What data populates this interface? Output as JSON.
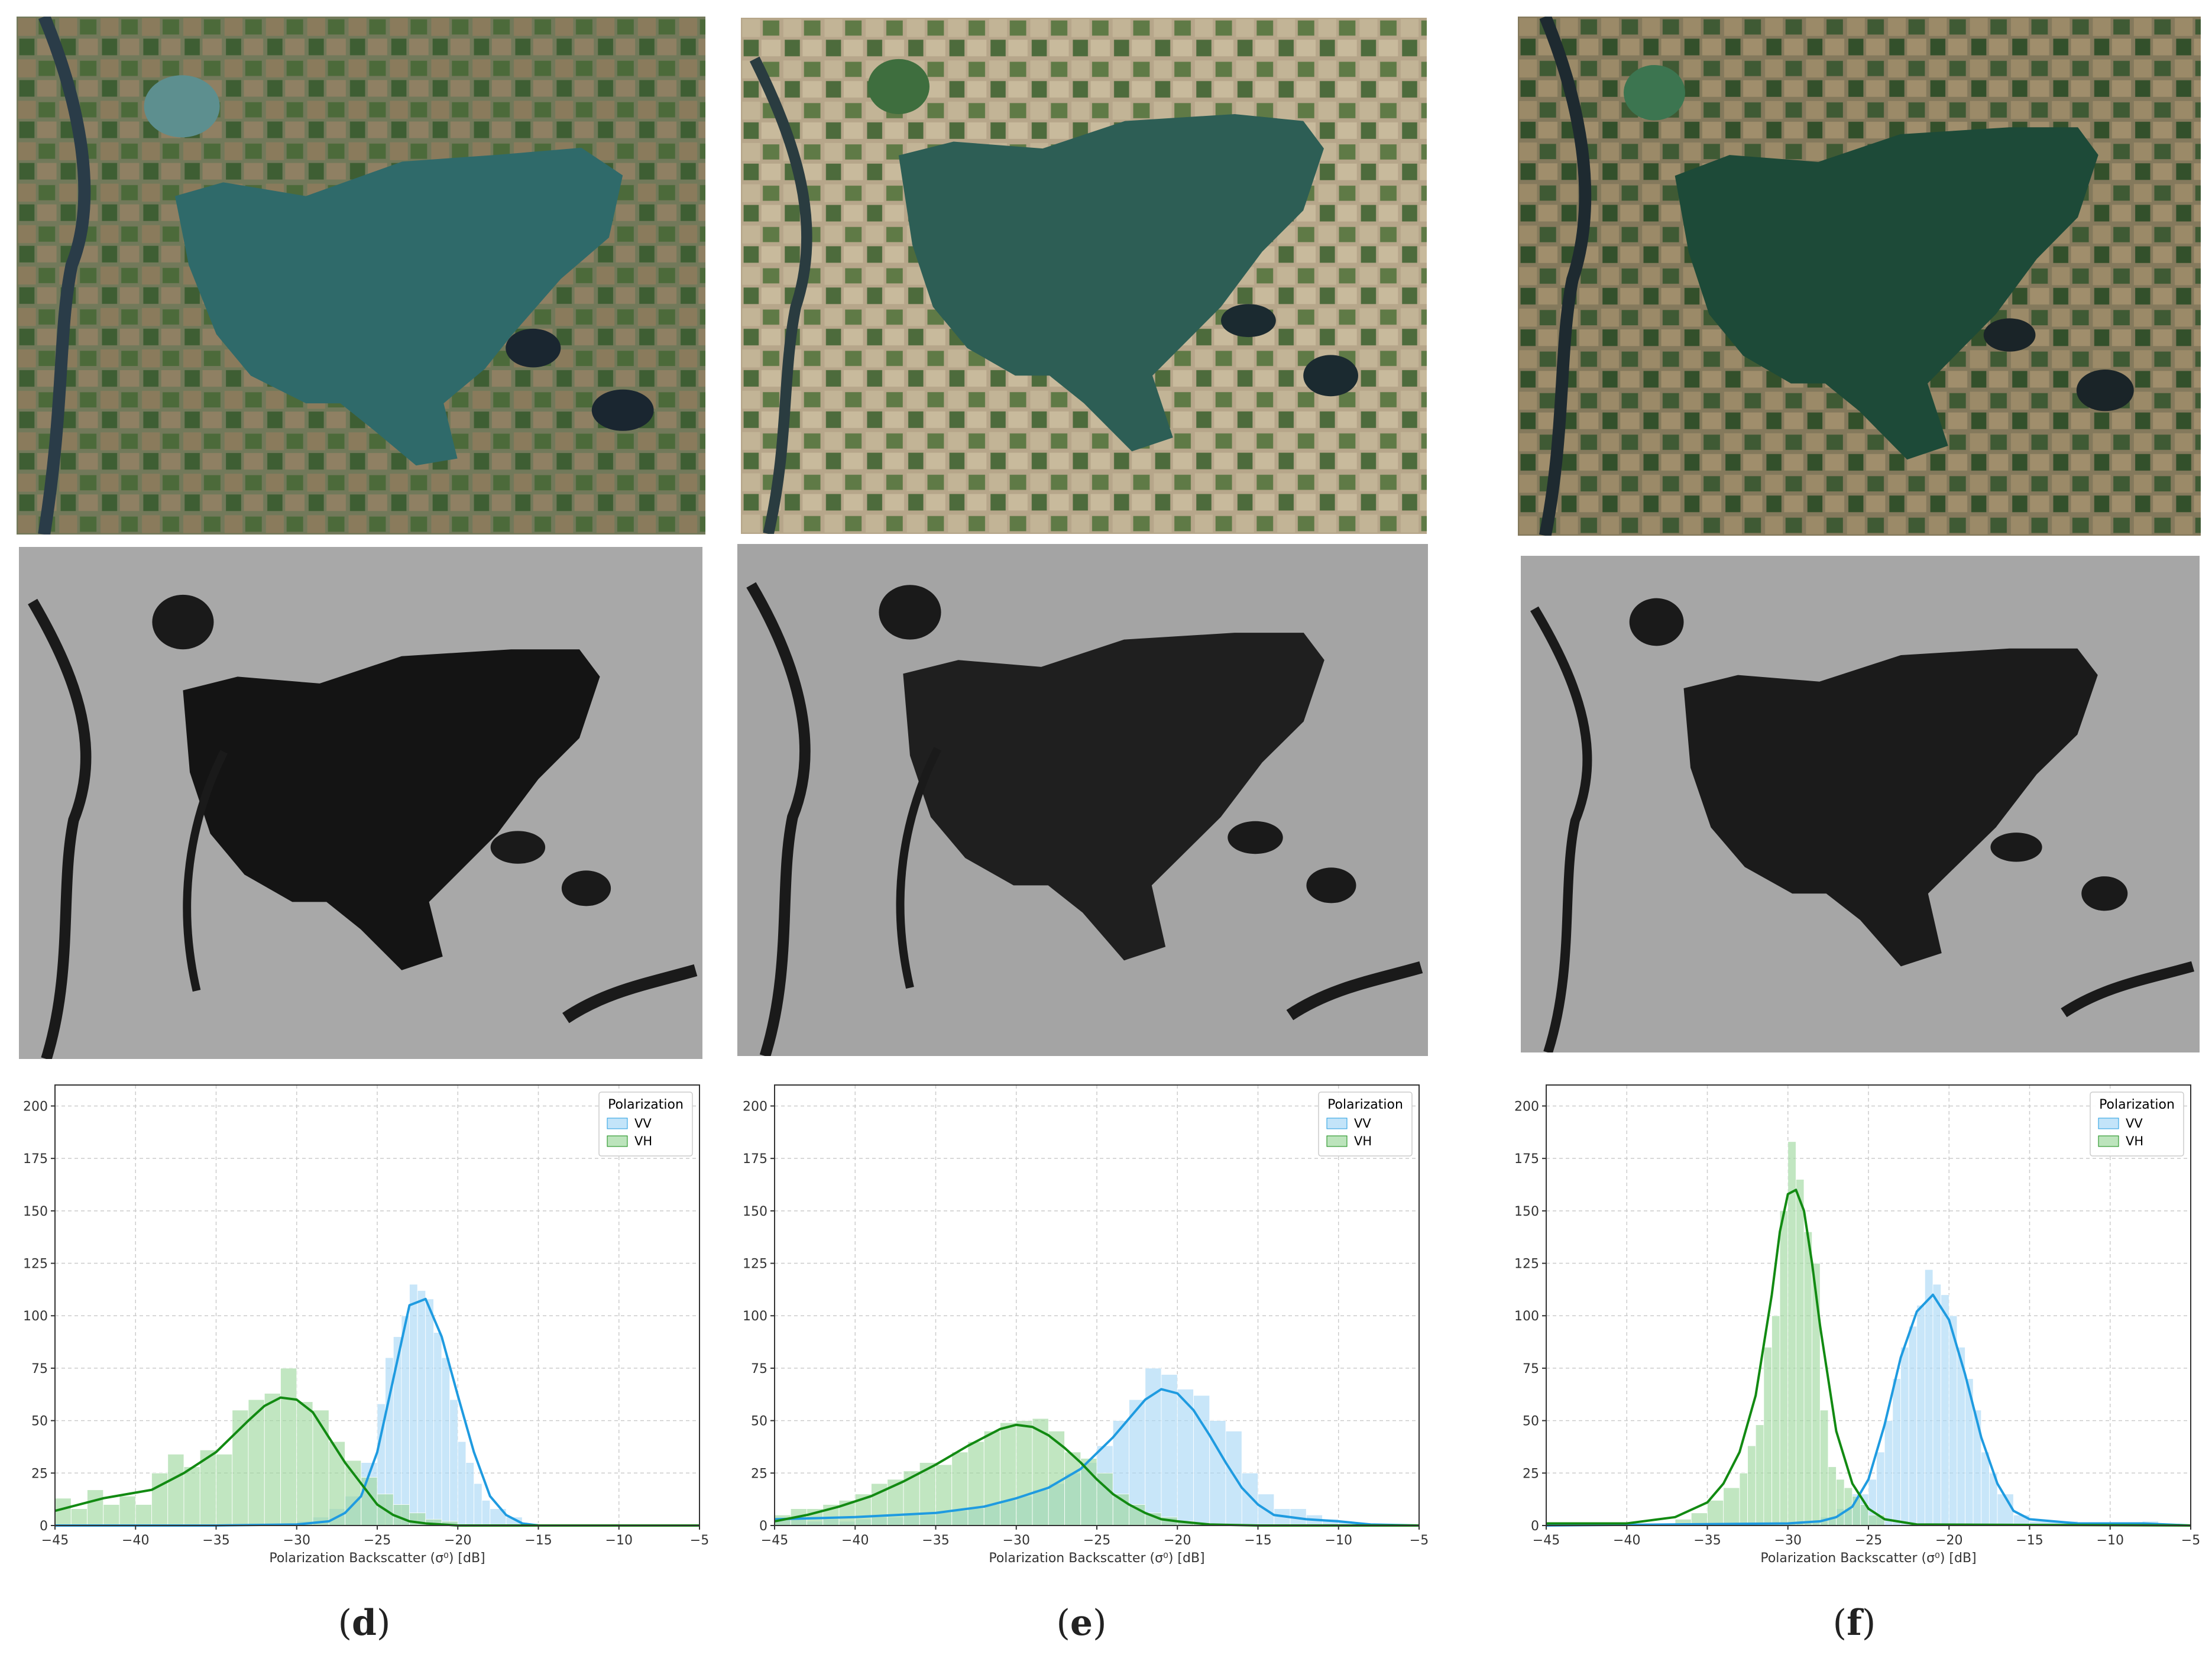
{
  "panels": [
    {
      "label": "d",
      "open": "(",
      "close": ")"
    },
    {
      "label": "e",
      "open": "(",
      "close": ")"
    },
    {
      "label": "f",
      "open": "(",
      "close": ")"
    }
  ],
  "colors": {
    "vv": "#1f9be0",
    "vv_fill": "#aad8f6",
    "vh": "#128a12",
    "vh_fill": "#9fd89f"
  },
  "chart_data": [
    {
      "type": "histogram",
      "xlabel": "Polarization Backscatter (σ⁰) [dB]",
      "xlim": [
        -45,
        -5
      ],
      "ylim": [
        0,
        210
      ],
      "xticks": [
        -45,
        -40,
        -35,
        -30,
        -25,
        -20,
        -15,
        -10,
        -5
      ],
      "yticks": [
        0,
        25,
        50,
        75,
        100,
        125,
        150,
        175,
        200
      ],
      "grid": true,
      "legend_title": "Polarization",
      "legend_position": "top-right",
      "series": [
        {
          "name": "VV",
          "bins": [
            -45,
            -44,
            -43,
            -42,
            -41,
            -40,
            -39,
            -38,
            -37,
            -36,
            -35,
            -34,
            -33,
            -32,
            -31,
            -30,
            -29,
            -28,
            -27,
            -26,
            -25,
            -24.5,
            -24,
            -23.5,
            -23,
            -22.5,
            -22,
            -21.5,
            -21,
            -20.5,
            -20,
            -19.5,
            -19,
            -18.5,
            -18,
            -17,
            -16,
            -15
          ],
          "counts": [
            0,
            0,
            0,
            0,
            0,
            0,
            0,
            0,
            0,
            0,
            0,
            0,
            1,
            1,
            1,
            2,
            4,
            8,
            14,
            30,
            58,
            80,
            90,
            100,
            115,
            112,
            108,
            92,
            80,
            60,
            40,
            30,
            20,
            12,
            8,
            4,
            1,
            0
          ],
          "kde_x": [
            -45,
            -35,
            -30,
            -28,
            -27,
            -26,
            -25,
            -24,
            -23,
            -22,
            -21,
            -20,
            -19,
            -18,
            -17,
            -16,
            -15,
            -10,
            -5
          ],
          "kde_y": [
            0,
            0,
            0.5,
            2,
            6,
            14,
            35,
            70,
            105,
            108,
            90,
            62,
            35,
            14,
            5,
            1,
            0,
            0,
            0
          ]
        },
        {
          "name": "VH",
          "bins": [
            -45,
            -44,
            -43,
            -42,
            -41,
            -40,
            -39,
            -38,
            -37,
            -36,
            -35,
            -34,
            -33,
            -32,
            -31,
            -30,
            -29,
            -28,
            -27,
            -26,
            -25,
            -24,
            -23,
            -22,
            -21,
            -20
          ],
          "counts": [
            13,
            8,
            17,
            10,
            14,
            10,
            25,
            34,
            28,
            36,
            34,
            55,
            60,
            63,
            75,
            59,
            55,
            40,
            31,
            23,
            15,
            10,
            6,
            3,
            2,
            0
          ],
          "kde_x": [
            -45,
            -42,
            -39,
            -37,
            -35,
            -33,
            -32,
            -31,
            -30,
            -29,
            -28,
            -27,
            -26,
            -25,
            -24,
            -23,
            -22,
            -20,
            -18,
            -5
          ],
          "kde_y": [
            7,
            13,
            17,
            25,
            35,
            50,
            57,
            61,
            60,
            54,
            42,
            30,
            20,
            10,
            5,
            2,
            1,
            0,
            0,
            0
          ]
        }
      ]
    },
    {
      "type": "histogram",
      "xlabel": "Polarization Backscatter (σ⁰) [dB]",
      "xlim": [
        -45,
        -5
      ],
      "ylim": [
        0,
        210
      ],
      "xticks": [
        -45,
        -40,
        -35,
        -30,
        -25,
        -20,
        -15,
        -10,
        -5
      ],
      "yticks": [
        0,
        25,
        50,
        75,
        100,
        125,
        150,
        175,
        200
      ],
      "grid": true,
      "legend_title": "Polarization",
      "legend_position": "top-right",
      "series": [
        {
          "name": "VV",
          "bins": [
            -45,
            -44,
            -43,
            -42,
            -41,
            -40,
            -39,
            -38,
            -37,
            -36,
            -35,
            -34,
            -33,
            -32,
            -31,
            -30,
            -29,
            -28,
            -27,
            -26,
            -25,
            -24,
            -23,
            -22,
            -21,
            -20,
            -19,
            -18,
            -17,
            -16,
            -15,
            -14,
            -13,
            -12,
            -11,
            -10,
            -9,
            -8
          ],
          "counts": [
            3,
            3,
            2,
            3,
            2,
            3,
            4,
            4,
            5,
            5,
            6,
            7,
            8,
            10,
            12,
            14,
            17,
            20,
            25,
            30,
            38,
            50,
            60,
            75,
            72,
            65,
            62,
            50,
            45,
            25,
            15,
            8,
            8,
            5,
            3,
            2,
            1,
            0
          ],
          "kde_x": [
            -45,
            -40,
            -35,
            -32,
            -30,
            -28,
            -26,
            -24,
            -22,
            -21,
            -20,
            -19,
            -18,
            -17,
            -16,
            -15,
            -14,
            -12,
            -10,
            -8,
            -5
          ],
          "kde_y": [
            3,
            4,
            6,
            9,
            13,
            18,
            27,
            42,
            60,
            65,
            63,
            55,
            43,
            30,
            18,
            10,
            5,
            3,
            2,
            0.5,
            0
          ],
          "kde_note": ""
        },
        {
          "name": "VH",
          "bins": [
            -45,
            -44,
            -43,
            -42,
            -41,
            -40,
            -39,
            -38,
            -37,
            -36,
            -35,
            -34,
            -33,
            -32,
            -31,
            -30,
            -29,
            -28,
            -27,
            -26,
            -25,
            -24,
            -23,
            -22,
            -21,
            -20,
            -19,
            -18
          ],
          "counts": [
            5,
            8,
            8,
            10,
            12,
            15,
            20,
            22,
            26,
            30,
            29,
            35,
            40,
            45,
            49,
            50,
            51,
            45,
            35,
            32,
            25,
            15,
            10,
            6,
            4,
            2,
            1,
            0
          ],
          "kde_x": [
            -45,
            -43,
            -41,
            -39,
            -37,
            -35,
            -33,
            -31,
            -30,
            -29,
            -28,
            -27,
            -26,
            -25,
            -24,
            -23,
            -22,
            -21,
            -20,
            -18,
            -15,
            -5
          ],
          "kde_y": [
            2,
            5,
            9,
            14,
            21,
            29,
            38,
            46,
            48,
            47,
            43,
            37,
            30,
            22,
            15,
            10,
            6,
            3,
            2,
            0.5,
            0,
            0
          ]
        }
      ]
    },
    {
      "type": "histogram",
      "xlabel": "Polarization Backscatter (σ⁰) [dB]",
      "xlim": [
        -45,
        -5
      ],
      "ylim": [
        0,
        210
      ],
      "xticks": [
        -45,
        -40,
        -35,
        -30,
        -25,
        -20,
        -15,
        -10,
        -5
      ],
      "yticks": [
        0,
        25,
        50,
        75,
        100,
        125,
        150,
        175,
        200
      ],
      "grid": true,
      "legend_title": "Polarization",
      "legend_position": "top-right",
      "series": [
        {
          "name": "VV",
          "bins": [
            -45,
            -40,
            -30,
            -29,
            -28,
            -27,
            -26,
            -25,
            -24.5,
            -24,
            -23.5,
            -23,
            -22.5,
            -22,
            -21.5,
            -21,
            -20.5,
            -20,
            -19.5,
            -19,
            -18.5,
            -18,
            -17.5,
            -17,
            -16,
            -15,
            -12,
            -10,
            -8,
            -7
          ],
          "counts": [
            0,
            0,
            1,
            2,
            4,
            8,
            15,
            22,
            35,
            50,
            70,
            85,
            95,
            105,
            122,
            115,
            110,
            100,
            85,
            70,
            55,
            35,
            25,
            15,
            5,
            2,
            1,
            1,
            2,
            0
          ],
          "kde_x": [
            -45,
            -30,
            -28,
            -27,
            -26,
            -25,
            -24,
            -23,
            -22,
            -21,
            -20,
            -19,
            -18,
            -17,
            -16,
            -15,
            -12,
            -8,
            -5
          ],
          "kde_y": [
            0,
            1,
            2,
            4,
            9,
            22,
            48,
            80,
            102,
            110,
            98,
            72,
            42,
            20,
            7,
            3,
            1,
            1,
            0
          ]
        },
        {
          "name": "VH",
          "bins": [
            -45,
            -44,
            -38,
            -37,
            -36,
            -35,
            -34,
            -33,
            -32.5,
            -32,
            -31.5,
            -31,
            -30.5,
            -30,
            -29.5,
            -29,
            -28.5,
            -28,
            -27.5,
            -27,
            -26.5,
            -26,
            -25.5,
            -25,
            -24
          ],
          "counts": [
            1,
            1,
            1,
            3,
            6,
            12,
            18,
            25,
            38,
            48,
            85,
            100,
            150,
            183,
            165,
            140,
            125,
            55,
            28,
            22,
            18,
            14,
            10,
            5,
            0
          ],
          "kde_x": [
            -45,
            -40,
            -37,
            -35,
            -34,
            -33,
            -32,
            -31,
            -30.5,
            -30,
            -29.5,
            -29,
            -28.5,
            -28,
            -27,
            -26,
            -25,
            -24,
            -22,
            -5
          ],
          "kde_y": [
            1,
            1,
            4,
            11,
            20,
            35,
            62,
            110,
            140,
            158,
            160,
            150,
            125,
            95,
            45,
            20,
            8,
            3,
            0.5,
            0
          ]
        }
      ]
    }
  ]
}
